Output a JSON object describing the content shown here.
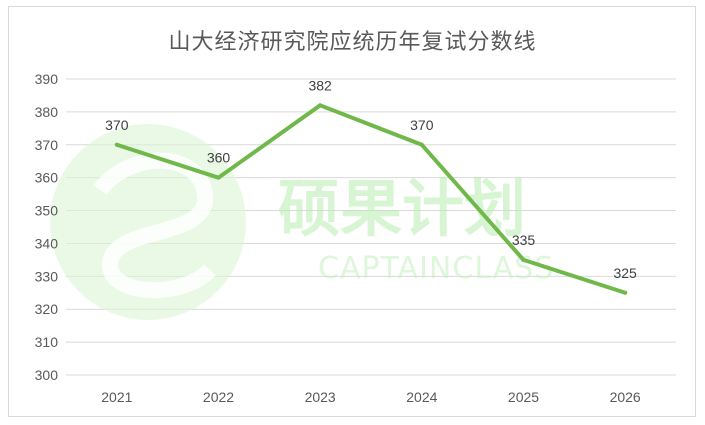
{
  "chart_data": {
    "type": "line",
    "title": "山大经济研究院应统历年复试分数线",
    "categories": [
      "2021",
      "2022",
      "2023",
      "2024",
      "2025",
      "2026"
    ],
    "series": [
      {
        "values": [
          370,
          360,
          382,
          370,
          335,
          325
        ],
        "color": "#70b84a"
      }
    ],
    "data_labels": [
      "370",
      "360",
      "382",
      "370",
      "335",
      "325"
    ],
    "y_ticks": [
      "300",
      "310",
      "320",
      "330",
      "340",
      "350",
      "360",
      "370",
      "380",
      "390"
    ],
    "ylim": [
      300,
      390
    ],
    "grid": true,
    "legend": "none"
  },
  "watermark": {
    "text_cn": "硕果计划",
    "text_en": "CAPTAINCLASS",
    "color": "#b7ecb0"
  }
}
